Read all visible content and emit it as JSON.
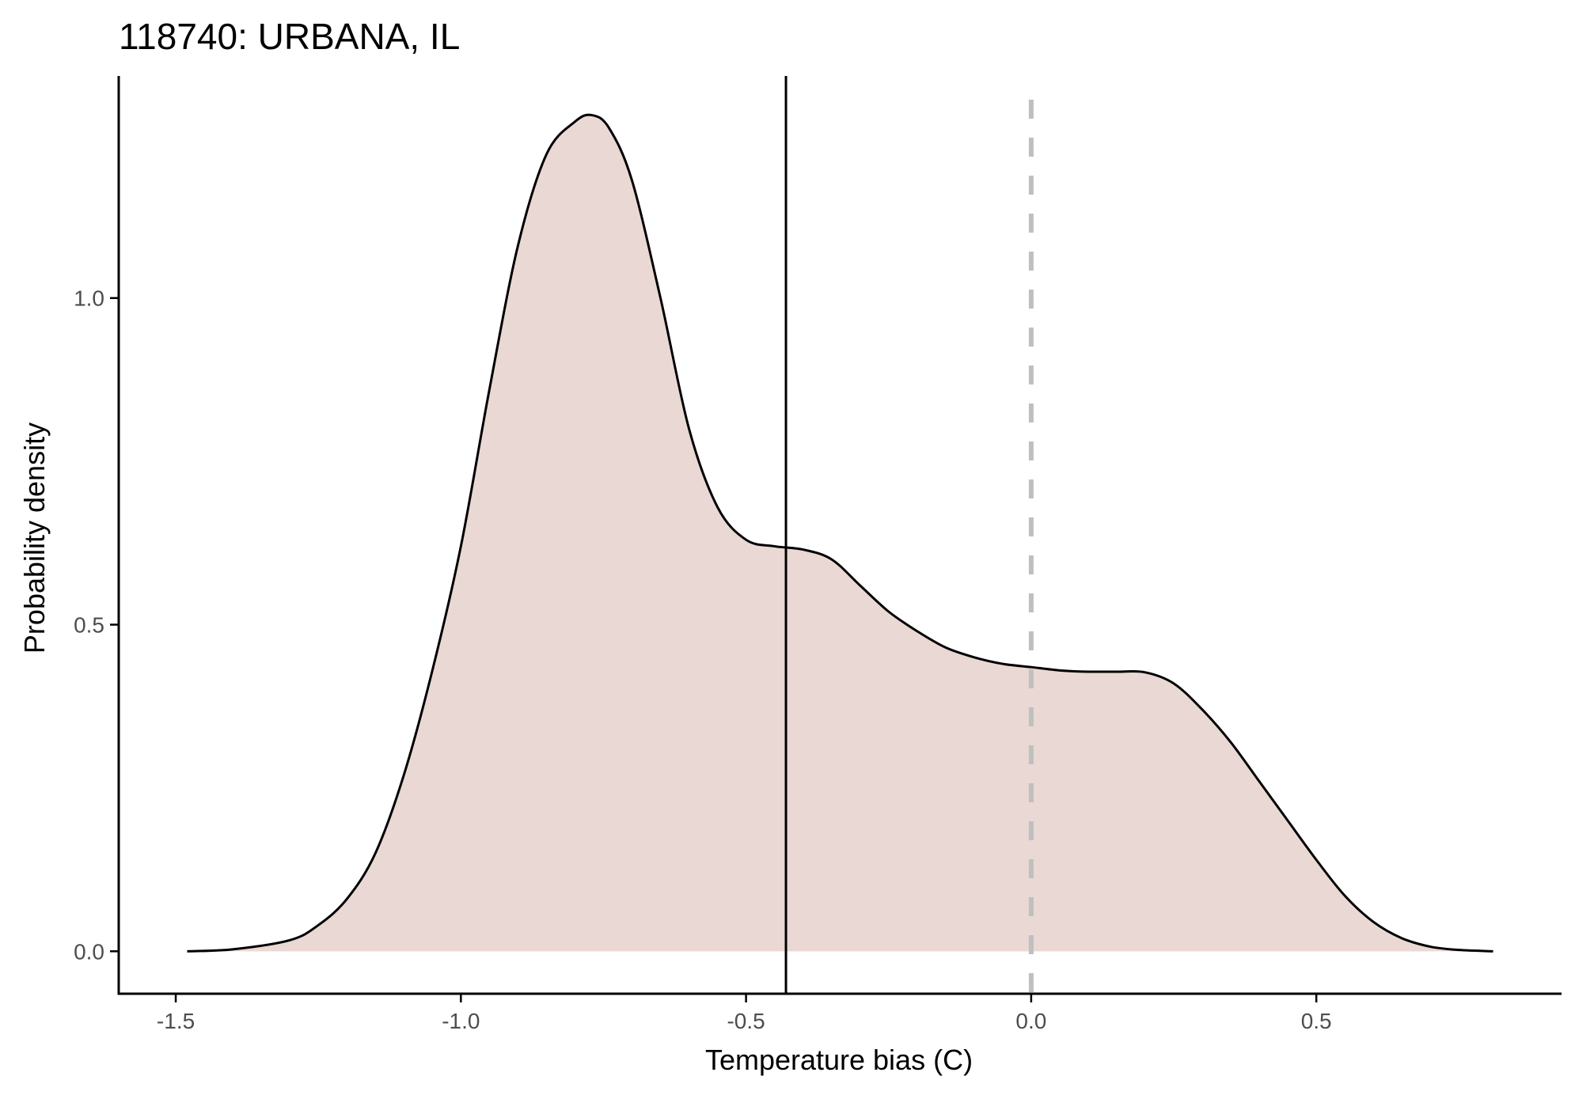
{
  "chart_data": {
    "type": "area",
    "title": "118740: URBANA, IL",
    "xlabel": "Temperature bias (C)",
    "ylabel": "Probability density",
    "xlim": [
      -1.6,
      0.93
    ],
    "ylim": [
      -0.065,
      1.34
    ],
    "x_ticks": [
      -1.5,
      -1.0,
      -0.5,
      0.0,
      0.5
    ],
    "x_tick_labels": [
      "-1.5",
      "-1.0",
      "-0.5",
      "0.0",
      "0.5"
    ],
    "y_ticks": [
      0.0,
      0.5,
      1.0
    ],
    "y_tick_labels": [
      "0.0",
      "0.5",
      "1.0"
    ],
    "grid": false,
    "colors": {
      "fill": "#e9d8d3",
      "line": "#000000",
      "reference_line": "#bfbfbf",
      "axis": "#000000",
      "tick_label": "#4d4d4d"
    },
    "density": {
      "x": [
        -1.48,
        -1.4,
        -1.3,
        -1.25,
        -1.2,
        -1.15,
        -1.1,
        -1.05,
        -1.0,
        -0.95,
        -0.9,
        -0.85,
        -0.8,
        -0.77,
        -0.74,
        -0.7,
        -0.65,
        -0.6,
        -0.55,
        -0.5,
        -0.45,
        -0.4,
        -0.35,
        -0.3,
        -0.25,
        -0.2,
        -0.15,
        -0.1,
        -0.05,
        0.0,
        0.05,
        0.1,
        0.15,
        0.2,
        0.25,
        0.3,
        0.35,
        0.4,
        0.45,
        0.5,
        0.55,
        0.6,
        0.65,
        0.7,
        0.75,
        0.81
      ],
      "y": [
        0.0,
        0.003,
        0.017,
        0.04,
        0.08,
        0.15,
        0.27,
        0.43,
        0.62,
        0.86,
        1.08,
        1.22,
        1.27,
        1.28,
        1.26,
        1.18,
        1.0,
        0.8,
        0.68,
        0.63,
        0.62,
        0.615,
        0.6,
        0.56,
        0.52,
        0.49,
        0.465,
        0.45,
        0.44,
        0.435,
        0.43,
        0.428,
        0.428,
        0.427,
        0.41,
        0.37,
        0.32,
        0.26,
        0.2,
        0.14,
        0.085,
        0.045,
        0.02,
        0.007,
        0.002,
        0.0
      ]
    },
    "vertical_lines": [
      {
        "x": -0.43,
        "style": "solid"
      },
      {
        "x": 0.0,
        "style": "dashed"
      }
    ]
  }
}
